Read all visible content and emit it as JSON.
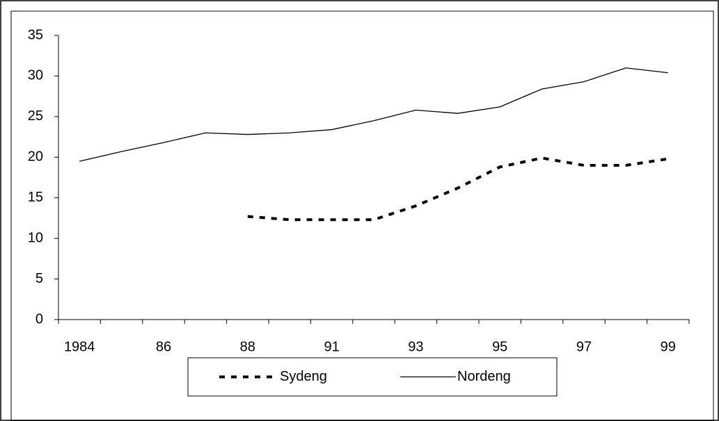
{
  "chart_data": {
    "type": "line",
    "categories": [
      "1984",
      null,
      "86",
      null,
      "88",
      null,
      "91",
      null,
      "93",
      null,
      "95",
      null,
      "97",
      null,
      "99"
    ],
    "series": [
      {
        "name": "Sydeng",
        "color": "#000000",
        "dash": true,
        "values": [
          null,
          null,
          null,
          null,
          12.7,
          12.3,
          12.3,
          12.3,
          14.0,
          16.2,
          18.8,
          19.9,
          19.0,
          19.0,
          19.8
        ]
      },
      {
        "name": "Nordeng",
        "color": "#000000",
        "dash": false,
        "values": [
          19.5,
          20.7,
          21.8,
          23.0,
          22.8,
          23.0,
          23.4,
          24.5,
          25.8,
          25.4,
          26.2,
          28.4,
          29.3,
          31.0,
          30.4
        ]
      }
    ],
    "ylim": [
      0,
      35
    ],
    "yticks": [
      0,
      5,
      10,
      15,
      20,
      25,
      30,
      35
    ],
    "grid": false,
    "legend": "bottom"
  }
}
